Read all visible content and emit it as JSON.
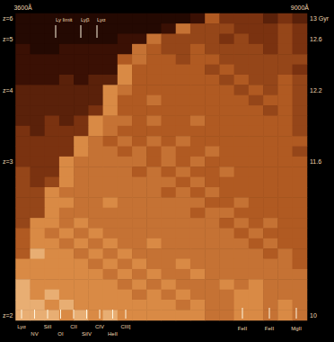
{
  "chart_data": {
    "type": "heatmap",
    "categories": [
      "3600Å",
      null,
      null,
      null,
      null,
      null,
      null,
      null,
      null,
      null,
      null,
      null,
      null,
      null,
      null,
      null,
      null,
      null,
      null,
      "9000Å"
    ],
    "y_categories": [
      "z=6",
      null,
      "z=5",
      null,
      null,
      null,
      null,
      "z=4",
      null,
      null,
      null,
      null,
      null,
      null,
      "z=3",
      null,
      null,
      null,
      null,
      null,
      null,
      null,
      null,
      null,
      null,
      null,
      null,
      null,
      null,
      "z=2"
    ],
    "y2_categories": [
      "13 Gyr",
      null,
      "12.6",
      null,
      null,
      null,
      null,
      "12.2",
      null,
      null,
      null,
      null,
      null,
      null,
      "11.6",
      null,
      null,
      null,
      null,
      null,
      null,
      null,
      null,
      null,
      null,
      null,
      null,
      null,
      null,
      "10"
    ],
    "zlim": [
      0,
      10
    ],
    "values": [
      [
        1,
        1,
        1,
        1,
        1,
        1,
        1,
        1,
        1,
        1,
        1,
        1,
        2,
        6,
        4,
        4,
        4,
        3,
        4,
        3
      ],
      [
        1,
        1,
        1,
        1,
        1,
        1,
        1,
        1,
        1,
        1,
        2,
        7,
        5,
        5,
        5,
        4,
        4,
        4,
        5,
        4
      ],
      [
        1,
        1,
        1,
        1,
        1,
        1,
        1,
        2,
        2,
        7,
        5,
        5,
        5,
        5,
        4,
        5,
        4,
        4,
        5,
        4
      ],
      [
        2,
        1,
        1,
        2,
        2,
        2,
        2,
        2,
        7,
        6,
        5,
        5,
        6,
        5,
        5,
        5,
        5,
        4,
        5,
        4
      ],
      [
        2,
        2,
        2,
        2,
        2,
        2,
        2,
        6,
        7,
        6,
        6,
        5,
        6,
        6,
        5,
        5,
        5,
        5,
        5,
        5
      ],
      [
        2,
        2,
        2,
        2,
        2,
        2,
        2,
        8,
        6,
        6,
        6,
        6,
        6,
        5,
        6,
        5,
        5,
        5,
        5,
        4
      ],
      [
        2,
        2,
        2,
        3,
        2,
        3,
        3,
        8,
        6,
        6,
        6,
        6,
        6,
        6,
        5,
        6,
        5,
        5,
        6,
        5
      ],
      [
        3,
        3,
        3,
        3,
        3,
        3,
        8,
        7,
        6,
        6,
        6,
        6,
        6,
        6,
        6,
        5,
        6,
        5,
        6,
        5
      ],
      [
        3,
        3,
        3,
        3,
        3,
        3,
        8,
        6,
        6,
        7,
        6,
        6,
        6,
        6,
        6,
        6,
        5,
        6,
        6,
        5
      ],
      [
        3,
        3,
        3,
        3,
        3,
        4,
        8,
        6,
        6,
        6,
        6,
        6,
        6,
        6,
        6,
        6,
        6,
        5,
        6,
        5
      ],
      [
        3,
        3,
        4,
        3,
        4,
        8,
        7,
        7,
        6,
        7,
        6,
        6,
        7,
        6,
        6,
        6,
        6,
        6,
        6,
        5
      ],
      [
        4,
        3,
        4,
        4,
        4,
        8,
        7,
        6,
        6,
        6,
        6,
        6,
        6,
        6,
        6,
        6,
        6,
        6,
        6,
        5
      ],
      [
        4,
        4,
        4,
        4,
        8,
        7,
        6,
        7,
        6,
        7,
        6,
        7,
        6,
        6,
        6,
        6,
        6,
        6,
        6,
        6
      ],
      [
        4,
        4,
        4,
        4,
        8,
        7,
        7,
        6,
        7,
        6,
        7,
        6,
        6,
        7,
        6,
        6,
        6,
        6,
        6,
        5
      ],
      [
        4,
        4,
        4,
        8,
        7,
        7,
        7,
        7,
        7,
        6,
        7,
        6,
        7,
        6,
        6,
        6,
        6,
        6,
        6,
        6
      ],
      [
        5,
        4,
        4,
        8,
        7,
        7,
        7,
        7,
        6,
        7,
        6,
        7,
        6,
        6,
        7,
        6,
        6,
        6,
        6,
        6
      ],
      [
        5,
        4,
        5,
        8,
        7,
        7,
        7,
        7,
        7,
        7,
        7,
        6,
        7,
        6,
        6,
        6,
        6,
        6,
        6,
        6
      ],
      [
        5,
        5,
        8,
        7,
        7,
        7,
        7,
        7,
        7,
        7,
        6,
        7,
        6,
        7,
        6,
        6,
        6,
        6,
        6,
        6
      ],
      [
        5,
        5,
        8,
        8,
        7,
        7,
        8,
        7,
        7,
        7,
        7,
        7,
        7,
        6,
        6,
        7,
        6,
        6,
        6,
        6
      ],
      [
        5,
        5,
        8,
        7,
        7,
        7,
        7,
        7,
        7,
        7,
        7,
        7,
        6,
        7,
        7,
        6,
        6,
        6,
        6,
        6
      ],
      [
        5,
        8,
        8,
        7,
        8,
        7,
        7,
        7,
        7,
        7,
        7,
        7,
        7,
        7,
        6,
        7,
        6,
        7,
        6,
        6
      ],
      [
        6,
        8,
        7,
        8,
        7,
        8,
        7,
        7,
        7,
        7,
        7,
        7,
        7,
        7,
        7,
        6,
        7,
        6,
        6,
        6
      ],
      [
        6,
        8,
        8,
        7,
        8,
        7,
        8,
        7,
        7,
        8,
        7,
        7,
        7,
        7,
        7,
        7,
        6,
        7,
        6,
        6
      ],
      [
        6,
        9,
        8,
        8,
        7,
        8,
        7,
        8,
        7,
        7,
        7,
        7,
        7,
        7,
        7,
        7,
        7,
        6,
        7,
        6
      ],
      [
        8,
        8,
        8,
        8,
        8,
        7,
        8,
        7,
        8,
        7,
        7,
        8,
        7,
        7,
        7,
        7,
        7,
        7,
        7,
        6
      ],
      [
        8,
        8,
        8,
        8,
        8,
        8,
        7,
        8,
        7,
        8,
        7,
        7,
        8,
        7,
        7,
        7,
        7,
        7,
        7,
        7
      ],
      [
        9,
        8,
        8,
        8,
        8,
        8,
        8,
        7,
        8,
        7,
        8,
        7,
        7,
        7,
        8,
        7,
        8,
        7,
        7,
        7
      ],
      [
        9,
        8,
        9,
        8,
        8,
        8,
        8,
        8,
        7,
        8,
        7,
        8,
        7,
        7,
        7,
        8,
        8,
        7,
        7,
        7
      ],
      [
        9,
        9,
        8,
        9,
        8,
        8,
        8,
        8,
        8,
        8,
        8,
        7,
        8,
        7,
        7,
        8,
        8,
        7,
        8,
        7
      ],
      [
        9,
        9,
        9,
        8,
        9,
        8,
        9,
        8,
        8,
        8,
        8,
        8,
        8,
        7,
        7,
        8,
        8,
        7,
        8,
        7
      ]
    ],
    "annotations": {
      "top": [
        "Ly limit",
        "Lyβ",
        "Lyα"
      ],
      "bottom": [
        "Lyα",
        "NV",
        "SiII",
        "OI",
        "CII",
        "SiIV",
        "CIV",
        "HeII",
        "CIII]"
      ],
      "bottom_right": [
        "FeII",
        "FeII",
        "MgII"
      ]
    },
    "tick_labels": true,
    "grid": false
  }
}
